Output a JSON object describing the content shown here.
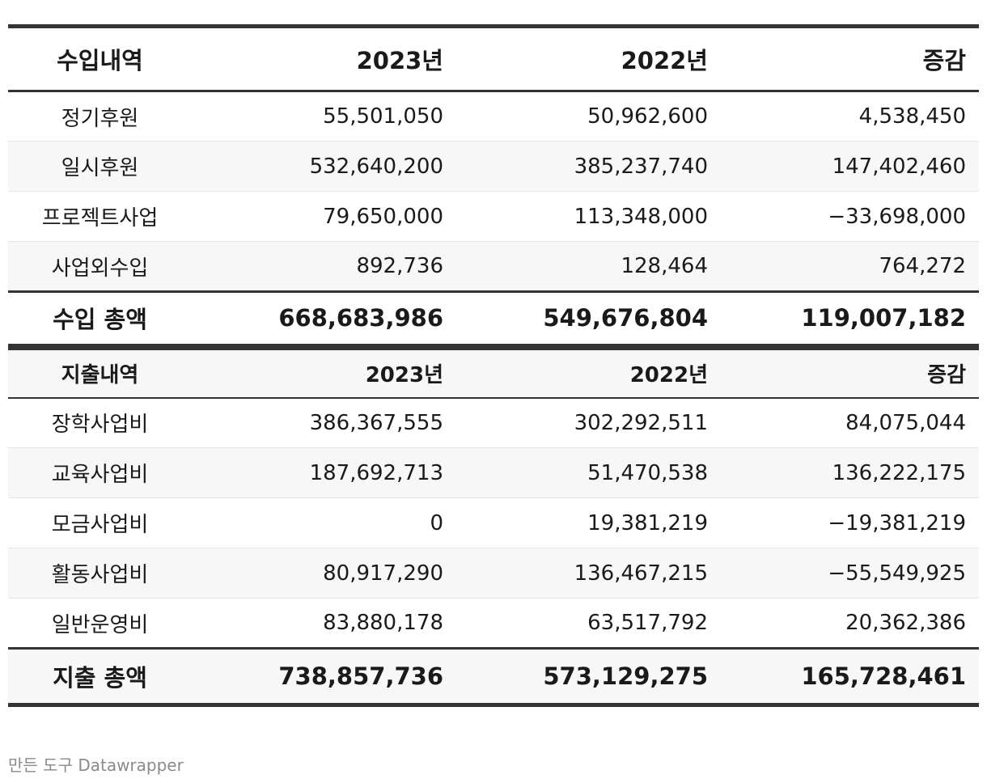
{
  "chart_data": {
    "type": "table",
    "sections": [
      {
        "columns": [
          "수입내역",
          "2023년",
          "2022년",
          "증감"
        ],
        "rows": [
          [
            "정기후원",
            "55,501,050",
            "50,962,600",
            "4,538,450"
          ],
          [
            "일시후원",
            "532,640,200",
            "385,237,740",
            "147,402,460"
          ],
          [
            "프로젝트사업",
            "79,650,000",
            "113,348,000",
            "−33,698,000"
          ],
          [
            "사업외수입",
            "892,736",
            "128,464",
            "764,272"
          ]
        ],
        "total": [
          "수입 총액",
          "668,683,986",
          "549,676,804",
          "119,007,182"
        ]
      },
      {
        "columns": [
          "지출내역",
          "2023년",
          "2022년",
          "증감"
        ],
        "rows": [
          [
            "장학사업비",
            "386,367,555",
            "302,292,511",
            "84,075,044"
          ],
          [
            "교육사업비",
            "187,692,713",
            "51,470,538",
            "136,222,175"
          ],
          [
            "모금사업비",
            "0",
            "19,381,219",
            "−19,381,219"
          ],
          [
            "활동사업비",
            "80,917,290",
            "136,467,215",
            "−55,549,925"
          ],
          [
            "일반운영비",
            "83,880,178",
            "63,517,792",
            "20,362,386"
          ]
        ],
        "total": [
          "지출 총액",
          "738,857,736",
          "573,129,275",
          "165,728,461"
        ]
      }
    ]
  },
  "footer": {
    "credit": "만든 도구 Datawrapper"
  }
}
